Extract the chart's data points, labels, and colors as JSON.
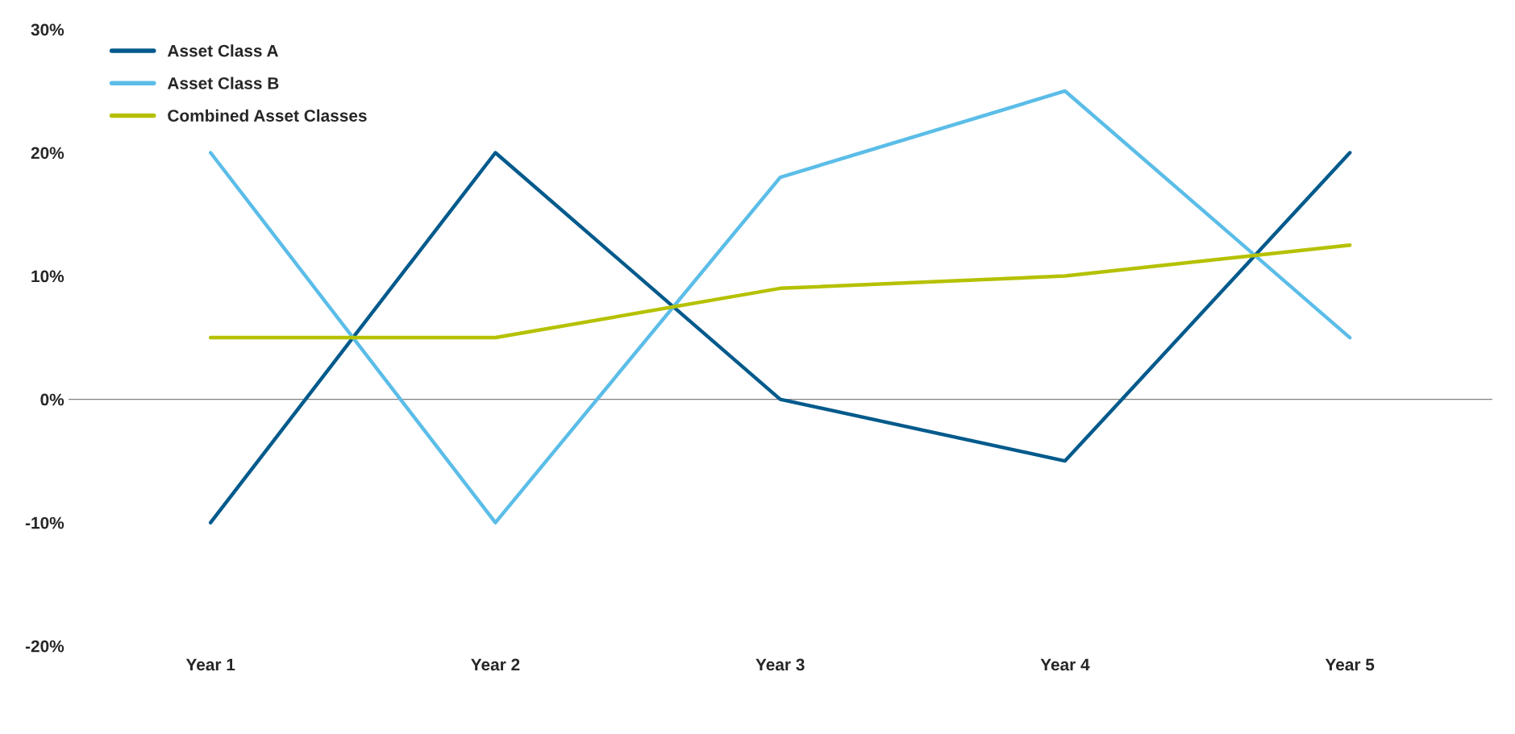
{
  "chart_data": {
    "type": "line",
    "categories": [
      "Year 1",
      "Year 2",
      "Year 3",
      "Year 4",
      "Year 5"
    ],
    "series": [
      {
        "name": "Asset Class A",
        "color": "#005a8c",
        "values": [
          -10,
          20,
          0,
          -5,
          20
        ]
      },
      {
        "name": "Asset Class B",
        "color": "#5bbde8",
        "values": [
          20,
          -10,
          18,
          25,
          5
        ]
      },
      {
        "name": "Combined Asset Classes",
        "color": "#b5c100",
        "values": [
          5,
          5,
          9,
          10,
          12.5
        ]
      }
    ],
    "ylim": [
      -20,
      30
    ],
    "yticks": [
      {
        "value": -20,
        "label": "-20%"
      },
      {
        "value": -10,
        "label": "-10%"
      },
      {
        "value": 0,
        "label": "0%"
      },
      {
        "value": 10,
        "label": "10%"
      },
      {
        "value": 20,
        "label": "20%"
      },
      {
        "value": 30,
        "label": "30%"
      }
    ],
    "ref_lines": [
      {
        "axis": "y",
        "value": 0,
        "color": "#808080"
      }
    ],
    "grid": false,
    "legend": "top left",
    "marker": "none",
    "line_style": "solid"
  }
}
